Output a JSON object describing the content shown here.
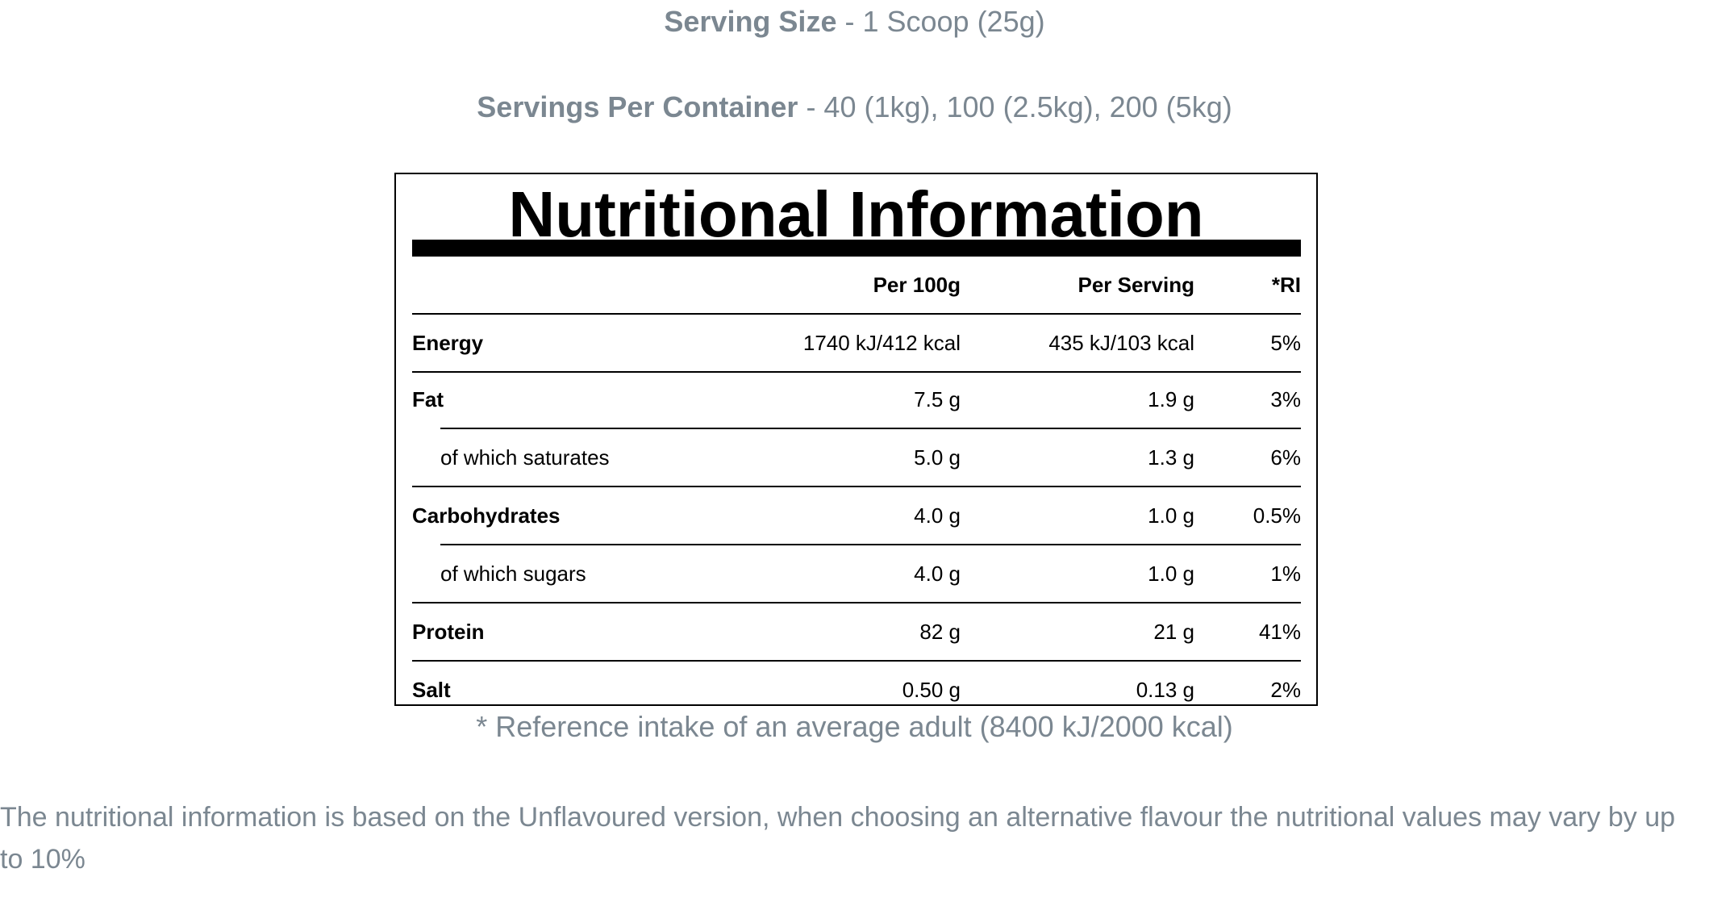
{
  "serving_size": {
    "label": "Serving Size",
    "value": " - 1 Scoop (25g)"
  },
  "servings_per_container": {
    "label": "Servings Per Container",
    "value": " - 40 (1kg), 100 (2.5kg), 200 (5kg)"
  },
  "panel": {
    "title": "Nutritional Information",
    "columns": {
      "per_100g": "Per 100g",
      "per_serving": "Per Serving",
      "ri": "*RI"
    },
    "rows": [
      {
        "name": "Energy",
        "per_100g": "1740 kJ/412 kcal",
        "per_serving": "435 kJ/103 kcal",
        "ri": "5%",
        "sub": false
      },
      {
        "name": "Fat",
        "per_100g": "7.5 g",
        "per_serving": "1.9 g",
        "ri": "3%",
        "sub": false
      },
      {
        "name": "of which saturates",
        "per_100g": "5.0 g",
        "per_serving": "1.3 g",
        "ri": "6%",
        "sub": true
      },
      {
        "name": "Carbohydrates",
        "per_100g": "4.0 g",
        "per_serving": "1.0 g",
        "ri": "0.5%",
        "sub": false
      },
      {
        "name": "of which sugars",
        "per_100g": "4.0 g",
        "per_serving": "1.0 g",
        "ri": "1%",
        "sub": true
      },
      {
        "name": "Protein",
        "per_100g": "82 g",
        "per_serving": "21 g",
        "ri": "41%",
        "sub": false
      },
      {
        "name": "Salt",
        "per_100g": "0.50 g",
        "per_serving": "0.13 g",
        "ri": "2%",
        "sub": false
      }
    ]
  },
  "footnote": "* Reference intake of an average adult (8400 kJ/2000 kcal)",
  "disclaimer": "The nutritional information is based on the Unflavoured version, when choosing an alternative flavour the nutritional values may vary by up to 10%",
  "colors": {
    "muted_text": "#7b8791",
    "panel_ink": "#000000"
  }
}
